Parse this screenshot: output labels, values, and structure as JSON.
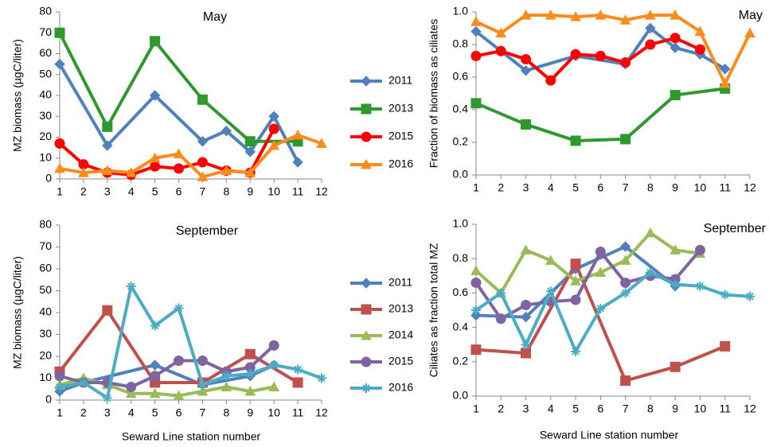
{
  "chart_data": [
    {
      "type": "line",
      "title": "May",
      "ylabel": "MZ biomass (µgC/liter)",
      "legend": "right",
      "xlim": [
        1,
        12
      ],
      "xticks": [
        1,
        2,
        3,
        4,
        5,
        6,
        7,
        8,
        9,
        10,
        11,
        12
      ],
      "ylim": [
        0,
        80
      ],
      "yticks": [
        0,
        10,
        20,
        30,
        40,
        50,
        60,
        70,
        80
      ],
      "series": [
        {
          "name": "2011",
          "color": "#4f81bd",
          "marker": "diamond",
          "x": [
            1,
            3,
            5,
            7,
            8,
            9,
            10,
            11
          ],
          "values": [
            55,
            16,
            40,
            18,
            23,
            13,
            30,
            8
          ]
        },
        {
          "name": "2013",
          "color": "#2e9a2e",
          "marker": "square",
          "x": [
            1,
            3,
            5,
            7,
            9,
            11
          ],
          "values": [
            70,
            25,
            66,
            38,
            18,
            18
          ]
        },
        {
          "name": "2015",
          "color": "#ff0000",
          "marker": "circle",
          "x": [
            1,
            2,
            3,
            4,
            5,
            6,
            7,
            8,
            9,
            10
          ],
          "values": [
            17,
            7,
            3,
            2,
            6,
            5,
            8,
            4,
            3,
            24
          ]
        },
        {
          "name": "2016",
          "color": "#ff8c1a",
          "marker": "triangle",
          "x": [
            1,
            2,
            3,
            4,
            5,
            6,
            7,
            8,
            9,
            10,
            11,
            12
          ],
          "values": [
            5,
            3,
            4,
            3,
            10,
            12,
            1,
            4,
            3,
            16,
            21,
            17
          ]
        }
      ]
    },
    {
      "type": "line",
      "title": "May",
      "ylabel": "Fraction of biomass as ciliates",
      "xlim": [
        1,
        12
      ],
      "xticks": [
        1,
        2,
        3,
        4,
        5,
        6,
        7,
        8,
        9,
        10,
        11,
        12
      ],
      "ylim": [
        0,
        1
      ],
      "yticks": [
        {
          "value": 0,
          "label": "0.0"
        },
        0.2,
        0.4,
        0.6,
        0.8,
        {
          "value": 1,
          "label": "1.0"
        }
      ],
      "series": [
        {
          "name": "2011",
          "color": "#4f81bd",
          "marker": "diamond",
          "x": [
            1,
            2,
            3,
            5,
            7,
            8,
            9,
            10,
            11
          ],
          "values": [
            0.88,
            0.76,
            0.64,
            0.73,
            0.68,
            0.9,
            0.78,
            0.74,
            0.65
          ]
        },
        {
          "name": "2013",
          "color": "#2e9a2e",
          "marker": "square",
          "x": [
            1,
            3,
            5,
            7,
            9,
            11
          ],
          "values": [
            0.44,
            0.31,
            0.21,
            0.22,
            0.49,
            0.53
          ]
        },
        {
          "name": "2015",
          "color": "#ff0000",
          "marker": "circle",
          "x": [
            1,
            2,
            3,
            4,
            5,
            6,
            7,
            8,
            9,
            10
          ],
          "values": [
            0.73,
            0.76,
            0.71,
            0.58,
            0.74,
            0.73,
            0.69,
            0.8,
            0.84,
            0.77
          ]
        },
        {
          "name": "2016",
          "color": "#ff8c1a",
          "marker": "triangle",
          "x": [
            1,
            2,
            3,
            4,
            5,
            6,
            7,
            8,
            9,
            10,
            11,
            12
          ],
          "values": [
            0.94,
            0.87,
            0.98,
            0.98,
            0.97,
            0.98,
            0.95,
            0.98,
            0.98,
            0.88,
            0.56,
            0.87
          ]
        }
      ]
    },
    {
      "type": "line",
      "title": "September",
      "ylabel": "MZ biomass (µgC/liter)",
      "xlabel": "Seward Line station number",
      "legend": "right",
      "xlim": [
        1,
        12
      ],
      "xticks": [
        1,
        2,
        3,
        4,
        5,
        6,
        7,
        8,
        9,
        10,
        11,
        12
      ],
      "ylim": [
        0,
        80
      ],
      "yticks": [
        0,
        10,
        20,
        30,
        40,
        50,
        60,
        70,
        80
      ],
      "series": [
        {
          "name": "2011",
          "color": "#4f81bd",
          "marker": "diamond",
          "x": [
            1,
            2,
            5,
            7,
            9,
            10
          ],
          "values": [
            4,
            8,
            16,
            7,
            11,
            16
          ]
        },
        {
          "name": "2013",
          "color": "#c0504d",
          "marker": "square",
          "x": [
            1,
            3,
            5,
            7,
            9,
            11
          ],
          "values": [
            13,
            41,
            8,
            8,
            21,
            8
          ]
        },
        {
          "name": "2014",
          "color": "#9bbb59",
          "marker": "triangle",
          "x": [
            1,
            2,
            3,
            4,
            5,
            6,
            7,
            8,
            9,
            10
          ],
          "values": [
            7,
            10,
            7,
            3,
            3,
            2,
            4,
            6,
            4,
            6
          ]
        },
        {
          "name": "2015",
          "color": "#8064a2",
          "marker": "circle",
          "x": [
            1,
            2,
            3,
            4,
            5,
            6,
            7,
            8,
            9,
            10
          ],
          "values": [
            11,
            8,
            8,
            6,
            11,
            18,
            18,
            13,
            15,
            25
          ]
        },
        {
          "name": "2016",
          "color": "#4bacc6",
          "marker": "star",
          "x": [
            1,
            2,
            3,
            4,
            5,
            6,
            7,
            8,
            9,
            10,
            11,
            12
          ],
          "values": [
            6,
            8,
            1,
            52,
            34,
            42,
            7,
            11,
            12,
            16,
            14,
            10
          ]
        }
      ]
    },
    {
      "type": "line",
      "title": "September",
      "ylabel": "Ciliates as fraction total MZ",
      "xlabel": "Seward Line station number",
      "xlim": [
        1,
        12
      ],
      "xticks": [
        1,
        2,
        3,
        4,
        5,
        6,
        7,
        8,
        9,
        10,
        11,
        12
      ],
      "ylim": [
        0,
        1
      ],
      "yticks": [
        {
          "value": 0,
          "label": "0.0"
        },
        0.2,
        0.4,
        0.6,
        0.8,
        {
          "value": 1,
          "label": "1.0"
        }
      ],
      "series": [
        {
          "name": "2011",
          "color": "#4f81bd",
          "marker": "diamond",
          "x": [
            1,
            3,
            5,
            7,
            9
          ],
          "values": [
            0.47,
            0.46,
            0.74,
            0.87,
            0.64
          ]
        },
        {
          "name": "2013",
          "color": "#c0504d",
          "marker": "square",
          "x": [
            1,
            3,
            5,
            7,
            9,
            11
          ],
          "values": [
            0.27,
            0.25,
            0.77,
            0.09,
            0.17,
            0.29
          ]
        },
        {
          "name": "2014",
          "color": "#9bbb59",
          "marker": "triangle",
          "x": [
            1,
            2,
            3,
            4,
            5,
            6,
            7,
            8,
            9,
            10
          ],
          "values": [
            0.73,
            0.6,
            0.85,
            0.79,
            0.67,
            0.72,
            0.79,
            0.95,
            0.85,
            0.83
          ]
        },
        {
          "name": "2015",
          "color": "#8064a2",
          "marker": "circle",
          "x": [
            1,
            2,
            3,
            4,
            5,
            6,
            7,
            8,
            9,
            10
          ],
          "values": [
            0.66,
            0.45,
            0.53,
            0.55,
            0.56,
            0.84,
            0.66,
            0.7,
            0.68,
            0.85
          ]
        },
        {
          "name": "2016",
          "color": "#4bacc6",
          "marker": "star",
          "x": [
            1,
            2,
            3,
            4,
            5,
            6,
            7,
            8,
            9,
            10,
            11,
            12
          ],
          "values": [
            0.5,
            0.6,
            0.3,
            0.61,
            0.26,
            0.51,
            0.6,
            0.72,
            0.65,
            0.64,
            0.59,
            0.58
          ]
        }
      ]
    }
  ]
}
